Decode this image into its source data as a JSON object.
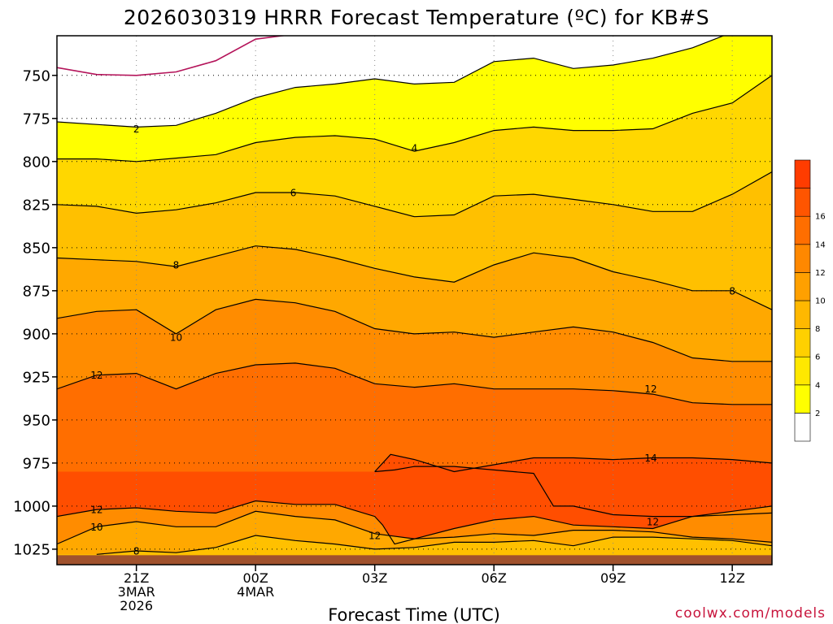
{
  "chart_data": {
    "type": "contour",
    "title": "2026030319 HRRR Forecast Temperature (ºC) for KB#S",
    "xlabel": "Forecast Time (UTC)",
    "ylabel": "",
    "credit": "coolwx.com/models",
    "x_range_hours": [
      -2,
      16
    ],
    "y_axis": {
      "reversed": true,
      "range": [
        727,
        1034
      ]
    },
    "y_ticks": [
      750,
      775,
      800,
      825,
      850,
      875,
      900,
      925,
      950,
      975,
      1000,
      1025
    ],
    "x_ticks": [
      {
        "hour": 0,
        "lines": [
          "21Z",
          "3MAR",
          "2026"
        ]
      },
      {
        "hour": 3,
        "lines": [
          "00Z",
          "4MAR"
        ]
      },
      {
        "hour": 6,
        "lines": [
          "03Z"
        ]
      },
      {
        "hour": 9,
        "lines": [
          "06Z"
        ]
      },
      {
        "hour": 12,
        "lines": [
          "09Z"
        ]
      },
      {
        "hour": 15,
        "lines": [
          "12Z"
        ]
      }
    ],
    "grid": true,
    "colorbar": {
      "position": "right",
      "labels": [
        "2",
        "4",
        "6",
        "8",
        "10",
        "12",
        "14",
        "16"
      ],
      "colors": [
        "#ffffff",
        "#ffff00",
        "#ffe800",
        "#ffd000",
        "#ffb800",
        "#ffa000",
        "#ff8800",
        "#ff6e00",
        "#ff5500",
        "#ff3c00"
      ]
    },
    "fill_levels": [
      {
        "min": 0,
        "color": "#ffffff"
      },
      {
        "min": 2,
        "color": "#ffff00"
      },
      {
        "min": 4,
        "color": "#ffd700"
      },
      {
        "min": 6,
        "color": "#ffc000"
      },
      {
        "min": 8,
        "color": "#ffa800"
      },
      {
        "min": 10,
        "color": "#ff8c00"
      },
      {
        "min": 12,
        "color": "#ff6e00"
      },
      {
        "min": 14,
        "color": "#ff4e00"
      }
    ],
    "terrain_color": "#a0522d",
    "freezing_line_color": "#b4145a",
    "contours": [
      {
        "value": 0,
        "points": [
          [
            -2,
            745.5
          ],
          [
            -1,
            749.5
          ],
          [
            0,
            750
          ],
          [
            1,
            748
          ],
          [
            2,
            741.5
          ],
          [
            3,
            729
          ],
          [
            4,
            726
          ],
          [
            5,
            725
          ],
          [
            6,
            724
          ],
          [
            7,
            724
          ]
        ]
      },
      {
        "value": 2,
        "points": [
          [
            -2,
            777
          ],
          [
            -1,
            778.5
          ],
          [
            0,
            780
          ],
          [
            1,
            779
          ],
          [
            2,
            772
          ],
          [
            3,
            763
          ],
          [
            4,
            757
          ],
          [
            5,
            755
          ],
          [
            6,
            752
          ],
          [
            7,
            755
          ],
          [
            8,
            754
          ],
          [
            9,
            742
          ],
          [
            10,
            740
          ],
          [
            11,
            746
          ],
          [
            12,
            744
          ],
          [
            13,
            740
          ],
          [
            14,
            734
          ],
          [
            15,
            725
          ],
          [
            16,
            722
          ]
        ]
      },
      {
        "value": 4,
        "points": [
          [
            -2,
            798.5
          ],
          [
            -1,
            798.5
          ],
          [
            0,
            800
          ],
          [
            1,
            798
          ],
          [
            2,
            796
          ],
          [
            3,
            789
          ],
          [
            4,
            786
          ],
          [
            5,
            785
          ],
          [
            6,
            787
          ],
          [
            7,
            794
          ],
          [
            8,
            789
          ],
          [
            9,
            782
          ],
          [
            10,
            780
          ],
          [
            11,
            782
          ],
          [
            12,
            782
          ],
          [
            13,
            781
          ],
          [
            14,
            772
          ],
          [
            15,
            766
          ],
          [
            16,
            750
          ]
        ]
      },
      {
        "value": 6,
        "points": [
          [
            -2,
            825
          ],
          [
            -1,
            826
          ],
          [
            0,
            830
          ],
          [
            1,
            828
          ],
          [
            2,
            824
          ],
          [
            3,
            818
          ],
          [
            4,
            818
          ],
          [
            5,
            820
          ],
          [
            6,
            826
          ],
          [
            7,
            832
          ],
          [
            8,
            831
          ],
          [
            9,
            820
          ],
          [
            10,
            819
          ],
          [
            11,
            822
          ],
          [
            12,
            825
          ],
          [
            13,
            829
          ],
          [
            14,
            829
          ],
          [
            15,
            819
          ],
          [
            16,
            806
          ]
        ]
      },
      {
        "value": 8,
        "points": [
          [
            -2,
            856
          ],
          [
            -1,
            857
          ],
          [
            0,
            858
          ],
          [
            1,
            861
          ],
          [
            2,
            855
          ],
          [
            3,
            849
          ],
          [
            4,
            851
          ],
          [
            5,
            856
          ],
          [
            6,
            862
          ],
          [
            7,
            867
          ],
          [
            8,
            870
          ],
          [
            9,
            860
          ],
          [
            10,
            853
          ],
          [
            11,
            856
          ],
          [
            12,
            864
          ],
          [
            13,
            869
          ],
          [
            14,
            875
          ],
          [
            15,
            875
          ],
          [
            16,
            886
          ]
        ]
      },
      {
        "value": 10,
        "points": [
          [
            -2,
            891
          ],
          [
            -1,
            887
          ],
          [
            0,
            886
          ],
          [
            1,
            900
          ],
          [
            2,
            886
          ],
          [
            3,
            880
          ],
          [
            4,
            882
          ],
          [
            5,
            887
          ],
          [
            6,
            897
          ],
          [
            7,
            900
          ],
          [
            8,
            899
          ],
          [
            9,
            902
          ],
          [
            10,
            899
          ],
          [
            11,
            896
          ],
          [
            12,
            899
          ],
          [
            13,
            905
          ],
          [
            14,
            914
          ],
          [
            15,
            916
          ],
          [
            16,
            916
          ]
        ]
      },
      {
        "value": 12,
        "points": [
          [
            -2,
            932
          ],
          [
            -1,
            924
          ],
          [
            0,
            923
          ],
          [
            1,
            932
          ],
          [
            2,
            923
          ],
          [
            3,
            918
          ],
          [
            4,
            917
          ],
          [
            5,
            920
          ],
          [
            6,
            929
          ],
          [
            7,
            931
          ],
          [
            8,
            929
          ],
          [
            9,
            932
          ],
          [
            10,
            932
          ],
          [
            11,
            932
          ],
          [
            12,
            933
          ],
          [
            13,
            935
          ],
          [
            14,
            940
          ],
          [
            15,
            941
          ],
          [
            16,
            941
          ]
        ]
      },
      {
        "value": 12,
        "points": [
          [
            -2,
            1006
          ],
          [
            -1,
            1002
          ],
          [
            0,
            1001
          ],
          [
            1,
            1003
          ],
          [
            2,
            1004
          ],
          [
            3,
            997
          ],
          [
            4,
            999
          ],
          [
            5,
            999
          ],
          [
            6,
            1006
          ],
          [
            6.2,
            1011
          ],
          [
            6.5,
            1022
          ],
          [
            7,
            1019
          ],
          [
            8,
            1013
          ],
          [
            9,
            1008
          ],
          [
            10,
            1006
          ],
          [
            11,
            1011
          ],
          [
            12,
            1012
          ],
          [
            13,
            1013
          ],
          [
            14,
            1006
          ],
          [
            15,
            1003
          ],
          [
            16,
            1000
          ]
        ]
      },
      {
        "value": 14,
        "points": [
          [
            6,
            980
          ],
          [
            6.4,
            970
          ],
          [
            7,
            973
          ],
          [
            8,
            980
          ],
          [
            9,
            976
          ],
          [
            10,
            972
          ],
          [
            11,
            972
          ],
          [
            12,
            973
          ],
          [
            13,
            972
          ],
          [
            14,
            972
          ],
          [
            15,
            973
          ],
          [
            16,
            975
          ]
        ]
      },
      {
        "value": 14,
        "points": [
          [
            6,
            980
          ],
          [
            6.5,
            979
          ],
          [
            7,
            977
          ],
          [
            8,
            977
          ],
          [
            9,
            979
          ],
          [
            10,
            981
          ],
          [
            10.5,
            1000
          ],
          [
            11,
            1000
          ],
          [
            12,
            1005
          ],
          [
            13,
            1006
          ],
          [
            14,
            1006
          ],
          [
            15,
            1005
          ],
          [
            16,
            1004
          ]
        ]
      },
      {
        "value": 10,
        "points": [
          [
            -2,
            1022
          ],
          [
            -1,
            1012
          ],
          [
            0,
            1009
          ],
          [
            1,
            1012
          ],
          [
            2,
            1012
          ],
          [
            3,
            1003
          ],
          [
            4,
            1006
          ],
          [
            5,
            1008
          ],
          [
            6,
            1016
          ],
          [
            7,
            1019
          ],
          [
            8,
            1018
          ],
          [
            9,
            1016
          ],
          [
            10,
            1017
          ],
          [
            11,
            1014
          ],
          [
            12,
            1014
          ],
          [
            13,
            1015
          ],
          [
            14,
            1018
          ],
          [
            15,
            1019
          ],
          [
            16,
            1021
          ]
        ]
      },
      {
        "value": 8,
        "points": [
          [
            -1,
            1028
          ],
          [
            0,
            1026
          ],
          [
            1,
            1027
          ],
          [
            2,
            1024
          ],
          [
            3,
            1017
          ],
          [
            4,
            1020
          ],
          [
            5,
            1022
          ],
          [
            6,
            1025
          ],
          [
            7,
            1024
          ],
          [
            8,
            1021
          ],
          [
            9,
            1021
          ],
          [
            10,
            1020
          ],
          [
            11,
            1023
          ],
          [
            12,
            1018
          ],
          [
            13,
            1018
          ],
          [
            14,
            1019
          ],
          [
            15,
            1020
          ],
          [
            16,
            1023
          ]
        ]
      }
    ],
    "contour_labels": [
      {
        "text": "2",
        "hour": 0,
        "p": 781
      },
      {
        "text": "4",
        "hour": 7,
        "p": 792
      },
      {
        "text": "6",
        "hour": 3.95,
        "p": 818
      },
      {
        "text": "8",
        "hour": 1,
        "p": 860
      },
      {
        "text": "10",
        "hour": 1,
        "p": 902
      },
      {
        "text": "12",
        "hour": -1,
        "p": 924
      },
      {
        "text": "12",
        "hour": 12.95,
        "p": 932
      },
      {
        "text": "14",
        "hour": 12.95,
        "p": 972
      },
      {
        "text": "8",
        "hour": 15,
        "p": 875
      },
      {
        "text": "12",
        "hour": -1,
        "p": 1002
      },
      {
        "text": "10",
        "hour": -1,
        "p": 1012
      },
      {
        "text": "8",
        "hour": 0,
        "p": 1026
      },
      {
        "text": "12",
        "hour": 6,
        "p": 1017
      },
      {
        "text": "12",
        "hour": 13,
        "p": 1009
      }
    ]
  }
}
